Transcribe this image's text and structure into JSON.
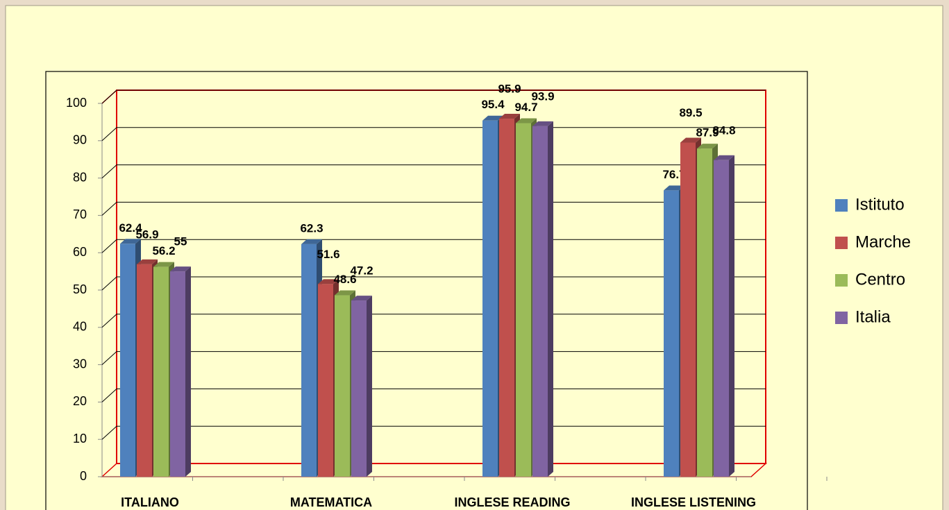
{
  "chart_data": {
    "type": "bar3d",
    "categories": [
      "ITALIANO",
      "MATEMATICA",
      "INGLESE READING",
      "INGLESE LISTENING"
    ],
    "series": [
      {
        "name": "Istituto",
        "color": "#4f81bd",
        "values": [
          62.4,
          62.3,
          95.4,
          76.7
        ]
      },
      {
        "name": "Marche",
        "color": "#c0504d",
        "values": [
          56.9,
          51.6,
          95.9,
          89.5
        ]
      },
      {
        "name": "Centro",
        "color": "#9bbb59",
        "values": [
          56.2,
          48.6,
          94.7,
          87.9
        ]
      },
      {
        "name": "Italia",
        "color": "#8064a2",
        "values": [
          55,
          47.2,
          93.9,
          84.8
        ]
      }
    ],
    "ylim": [
      0,
      100
    ],
    "yticks": [
      0,
      10,
      20,
      30,
      40,
      50,
      60,
      70,
      80,
      90,
      100
    ],
    "grid": true,
    "legend": "right"
  }
}
